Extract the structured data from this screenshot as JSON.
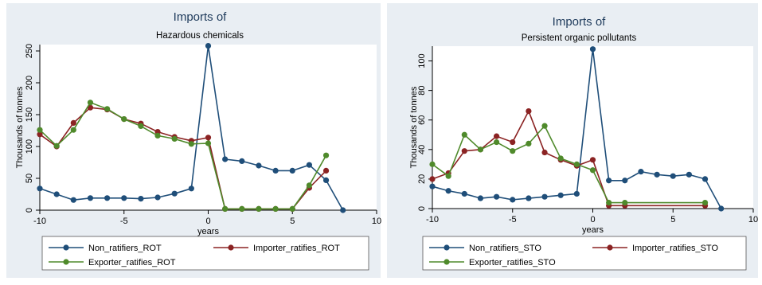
{
  "figure": {
    "panel_background": "#e9eef3",
    "plot_background": "#ffffff",
    "title_color": "#1f3b5c"
  },
  "chart_data": [
    {
      "type": "line",
      "title": "Imports of",
      "subtitle": "Hazardous chemicals",
      "xlabel": "years",
      "ylabel": "Thousands of tonnes",
      "xlim": [
        -10,
        10
      ],
      "ylim": [
        0,
        260
      ],
      "x_ticks": [
        -10,
        -5,
        0,
        5,
        10
      ],
      "x_tick_labels": [
        "-10",
        "-5",
        "0",
        "5",
        "10"
      ],
      "y_ticks": [
        0,
        50,
        100,
        150,
        200,
        250
      ],
      "y_tick_labels": [
        "0",
        "50",
        "100",
        "150",
        "200",
        "250"
      ],
      "grid": false,
      "legend_position": "bottom",
      "series": [
        {
          "name": "Non_ratifiers_ROT",
          "color": "#1f4e79",
          "points": [
            [
              -10,
              34
            ],
            [
              -9,
              25
            ],
            [
              -8,
              16
            ],
            [
              -7,
              19
            ],
            [
              -6,
              19
            ],
            [
              -5,
              19
            ],
            [
              -4,
              18
            ],
            [
              -3,
              20
            ],
            [
              -2,
              26
            ],
            [
              -1,
              34
            ],
            [
              0,
              258
            ],
            [
              1,
              80
            ],
            [
              2,
              77
            ],
            [
              3,
              70
            ],
            [
              4,
              62
            ],
            [
              5,
              62
            ],
            [
              6,
              71
            ],
            [
              7,
              47
            ],
            [
              8,
              0
            ]
          ]
        },
        {
          "name": "Importer_ratifies_ROT",
          "color": "#8b2323",
          "points": [
            [
              -10,
              119
            ],
            [
              -9,
              100
            ],
            [
              -8,
              137
            ],
            [
              -7,
              161
            ],
            [
              -6,
              158
            ],
            [
              -5,
              143
            ],
            [
              -4,
              136
            ],
            [
              -3,
              123
            ],
            [
              -2,
              115
            ],
            [
              -1,
              109
            ],
            [
              0,
              114
            ],
            [
              1,
              2
            ],
            [
              2,
              2
            ],
            [
              3,
              2
            ],
            [
              4,
              2
            ],
            [
              5,
              2
            ],
            [
              6,
              35
            ],
            [
              7,
              62
            ]
          ]
        },
        {
          "name": "Exporter_ratifies_ROT",
          "color": "#4f8a2b",
          "points": [
            [
              -10,
              126
            ],
            [
              -9,
              101
            ],
            [
              -8,
              126
            ],
            [
              -7,
              169
            ],
            [
              -6,
              159
            ],
            [
              -5,
              143
            ],
            [
              -4,
              132
            ],
            [
              -3,
              117
            ],
            [
              -2,
              112
            ],
            [
              -1,
              104
            ],
            [
              0,
              105
            ],
            [
              1,
              2
            ],
            [
              2,
              2
            ],
            [
              3,
              2
            ],
            [
              4,
              2
            ],
            [
              5,
              2
            ],
            [
              6,
              39
            ],
            [
              7,
              86
            ]
          ]
        }
      ]
    },
    {
      "type": "line",
      "title": "Imports of",
      "subtitle": "Persistent organic pollutants",
      "xlabel": "years",
      "ylabel": "Thousands of tonnes",
      "xlim": [
        -10,
        10
      ],
      "ylim": [
        0,
        110
      ],
      "x_ticks": [
        -10,
        -5,
        0,
        5,
        10
      ],
      "x_tick_labels": [
        "-10",
        "-5",
        "0",
        "5",
        "10"
      ],
      "y_ticks": [
        0,
        20,
        40,
        60,
        80,
        100
      ],
      "y_tick_labels": [
        "0",
        "20",
        "40",
        "60",
        "80",
        "100"
      ],
      "grid": false,
      "legend_position": "bottom",
      "series": [
        {
          "name": "Non_ratifiers_STO",
          "color": "#1f4e79",
          "points": [
            [
              -10,
              15
            ],
            [
              -9,
              12
            ],
            [
              -8,
              10
            ],
            [
              -7,
              7
            ],
            [
              -6,
              8
            ],
            [
              -5,
              6
            ],
            [
              -4,
              7
            ],
            [
              -3,
              8
            ],
            [
              -2,
              9
            ],
            [
              -1,
              10
            ],
            [
              0,
              108
            ],
            [
              1,
              19
            ],
            [
              2,
              19
            ],
            [
              3,
              25
            ],
            [
              4,
              23
            ],
            [
              5,
              22
            ],
            [
              6,
              23
            ],
            [
              7,
              20
            ],
            [
              8,
              0
            ]
          ]
        },
        {
          "name": "Importer_ratifies_STO",
          "color": "#8b2323",
          "points": [
            [
              -10,
              20
            ],
            [
              -9,
              24
            ],
            [
              -8,
              39
            ],
            [
              -7,
              40
            ],
            [
              -6,
              49
            ],
            [
              -5,
              45
            ],
            [
              -4,
              66
            ],
            [
              -3,
              38
            ],
            [
              -2,
              33
            ],
            [
              -1,
              29
            ],
            [
              0,
              33
            ],
            [
              1,
              2
            ],
            [
              2,
              2
            ],
            [
              7,
              2
            ]
          ]
        },
        {
          "name": "Exporter_ratifies_STO",
          "color": "#4f8a2b",
          "points": [
            [
              -10,
              30
            ],
            [
              -9,
              22
            ],
            [
              -8,
              50
            ],
            [
              -7,
              40
            ],
            [
              -6,
              45
            ],
            [
              -5,
              39
            ],
            [
              -4,
              44
            ],
            [
              -3,
              56
            ],
            [
              -2,
              34
            ],
            [
              -1,
              30
            ],
            [
              0,
              26
            ],
            [
              1,
              4
            ],
            [
              2,
              4
            ],
            [
              7,
              4
            ]
          ]
        }
      ]
    }
  ]
}
